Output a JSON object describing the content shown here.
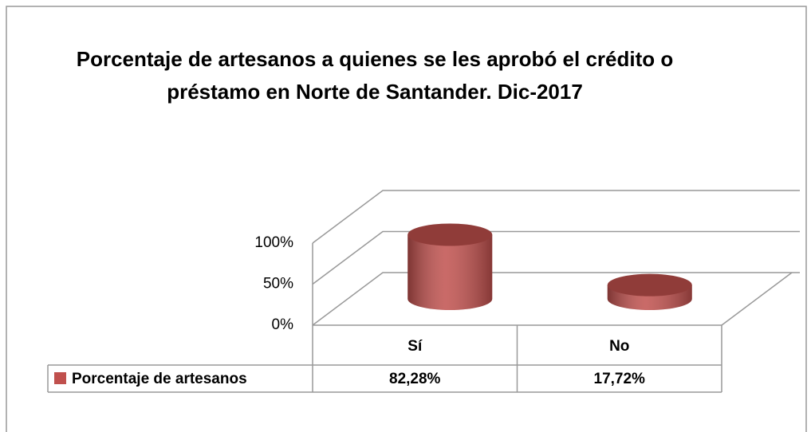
{
  "chart_data": {
    "type": "bar3d",
    "title": "Porcentaje de artesanos a quienes se les aprobó el crédito o préstamo en Norte de Santander. Dic-2017",
    "categories": [
      "Sí",
      "No"
    ],
    "series": [
      {
        "name": "Porcentaje de artesanos",
        "color": "#c0504d",
        "values": [
          82.28,
          17.72
        ],
        "value_labels": [
          "82,28%",
          "17,72%"
        ]
      }
    ],
    "ylim": [
      0,
      100
    ],
    "yticks": [
      {
        "value": 0,
        "label": "0%"
      },
      {
        "value": 50,
        "label": "50%"
      },
      {
        "value": 100,
        "label": "100%"
      }
    ],
    "grid": true,
    "data_table": true
  }
}
